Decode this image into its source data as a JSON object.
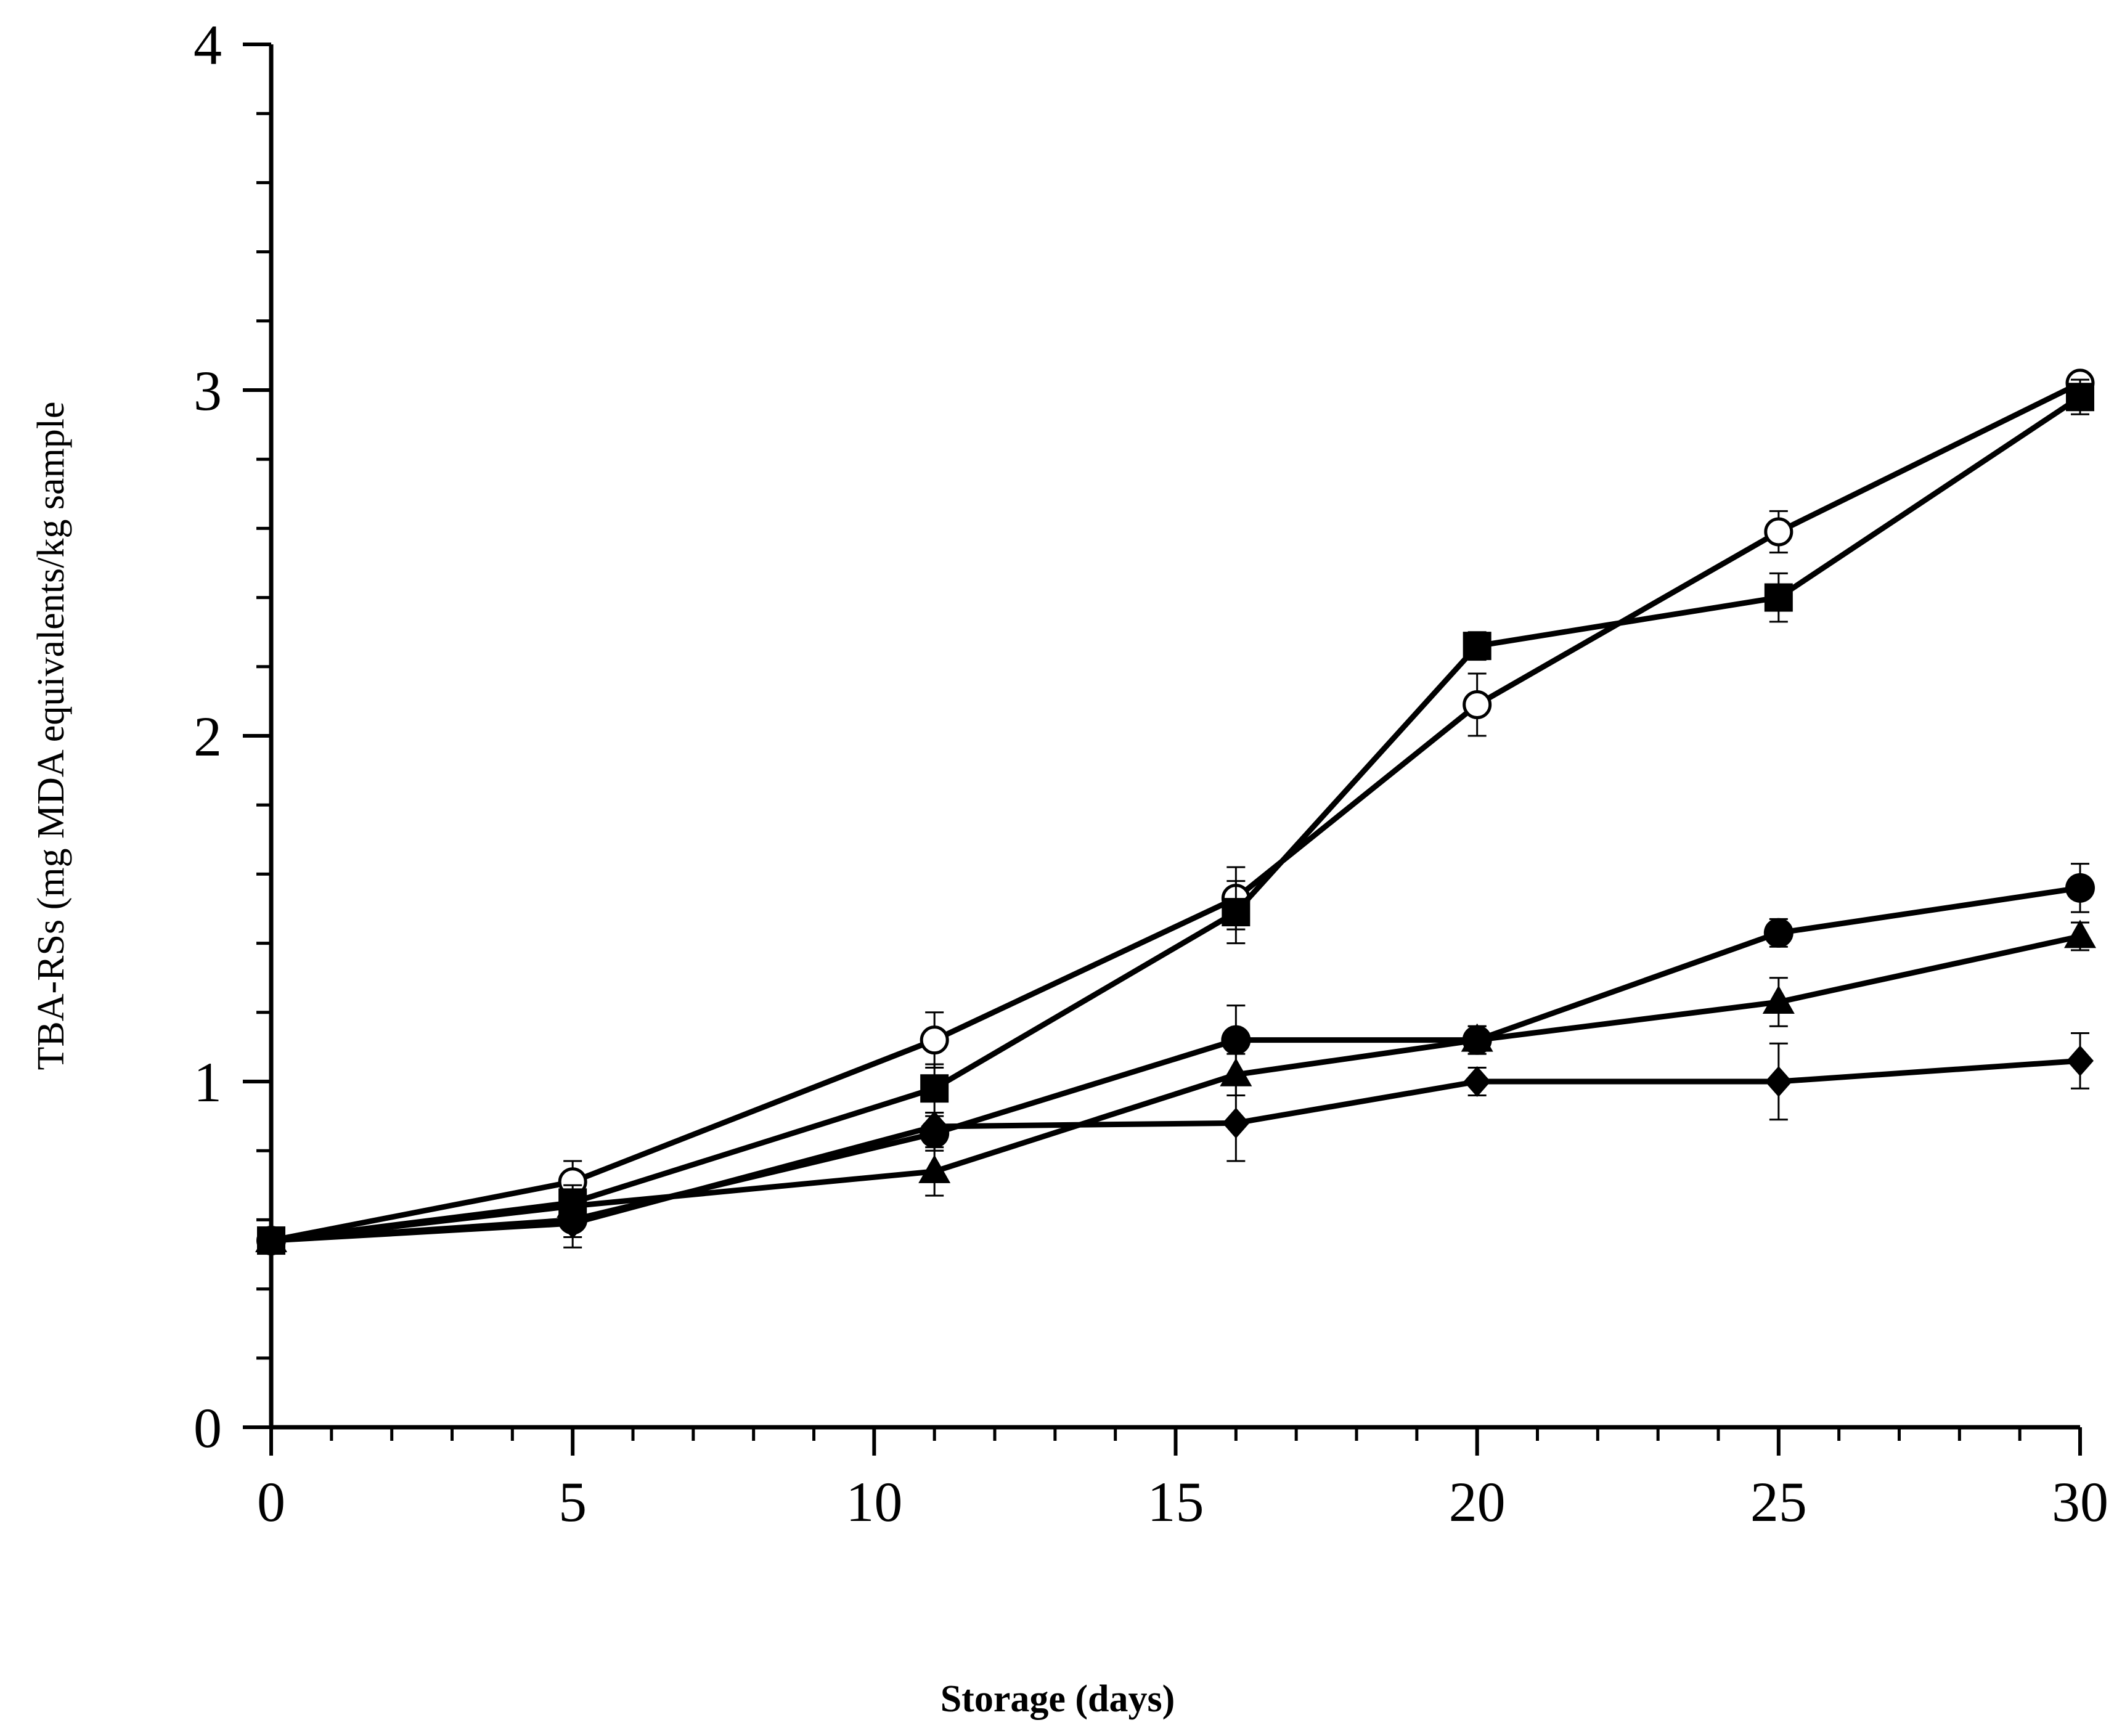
{
  "chart_data": {
    "type": "line",
    "title": "",
    "xlabel": "Storage (days)",
    "ylabel": "TBA-RSs (mg MDA equivalents/kg sample",
    "xlim": [
      0,
      30
    ],
    "ylim": [
      0,
      4
    ],
    "x_major_ticks": [
      0,
      5,
      10,
      15,
      20,
      25,
      30
    ],
    "x_tick_labels": [
      "0",
      "5",
      "10",
      "15",
      "20",
      "25",
      "30"
    ],
    "x_minor_step": 1,
    "y_major_ticks": [
      0,
      1,
      2,
      3,
      4
    ],
    "y_tick_labels": [
      "0",
      "1",
      "2",
      "3",
      "4"
    ],
    "y_minor_step": 0.2,
    "grid": false,
    "legend": "none",
    "series": [
      {
        "name": "open-circle",
        "marker": "circle-open",
        "x": [
          0,
          5,
          11,
          16,
          20,
          25,
          30
        ],
        "y": [
          0.54,
          0.71,
          1.12,
          1.53,
          2.09,
          2.59,
          3.02
        ],
        "err": [
          0.02,
          0.06,
          0.08,
          0.09,
          0.09,
          0.06,
          0.03
        ]
      },
      {
        "name": "filled-square",
        "marker": "square",
        "x": [
          0,
          5,
          11,
          16,
          20,
          25,
          30
        ],
        "y": [
          0.54,
          0.65,
          0.98,
          1.49,
          2.26,
          2.4,
          2.98
        ],
        "err": [
          0.02,
          0.05,
          0.07,
          0.09,
          0.04,
          0.07,
          0.05
        ]
      },
      {
        "name": "filled-circle",
        "marker": "circle",
        "x": [
          0,
          5,
          11,
          16,
          20,
          25,
          30
        ],
        "y": [
          0.54,
          0.6,
          0.85,
          1.12,
          1.12,
          1.43,
          1.56
        ],
        "err": [
          0.02,
          0.05,
          0.05,
          0.1,
          0.04,
          0.04,
          0.07
        ]
      },
      {
        "name": "filled-triangle",
        "marker": "triangle",
        "x": [
          0,
          5,
          11,
          16,
          20,
          25,
          30
        ],
        "y": [
          0.54,
          0.64,
          0.74,
          1.02,
          1.12,
          1.23,
          1.42
        ],
        "err": [
          0.02,
          0.04,
          0.07,
          0.06,
          0.04,
          0.07,
          0.04
        ]
      },
      {
        "name": "filled-diamond",
        "marker": "diamond",
        "x": [
          0,
          5,
          11,
          16,
          20,
          25,
          30
        ],
        "y": [
          0.54,
          0.59,
          0.87,
          0.88,
          1.0,
          1.0,
          1.06
        ],
        "err": [
          0.02,
          0.07,
          0.04,
          0.11,
          0.04,
          0.11,
          0.08
        ]
      }
    ]
  }
}
